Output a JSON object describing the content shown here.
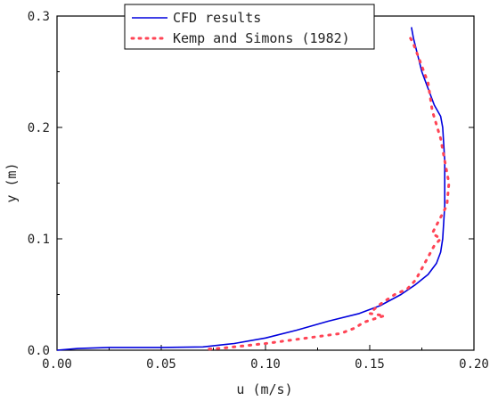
{
  "chart_data": {
    "type": "line",
    "title": "",
    "xlabel": "u (m/s)",
    "ylabel": "y (m)",
    "xlim": [
      0.0,
      0.2
    ],
    "ylim": [
      0.0,
      0.3
    ],
    "x_ticks": [
      "0.00",
      "0.05",
      "0.10",
      "0.15",
      "0.20"
    ],
    "y_ticks": [
      "0.0",
      "0.1",
      "0.2",
      "0.3"
    ],
    "grid": false,
    "legend_position": "top-center",
    "series": [
      {
        "name": "CFD results",
        "style": "solid",
        "color": "#0000dd",
        "points": [
          [
            0.0,
            0.0
          ],
          [
            0.01,
            0.0015
          ],
          [
            0.025,
            0.0025
          ],
          [
            0.05,
            0.0025
          ],
          [
            0.07,
            0.003
          ],
          [
            0.085,
            0.006
          ],
          [
            0.1,
            0.011
          ],
          [
            0.115,
            0.018
          ],
          [
            0.13,
            0.026
          ],
          [
            0.145,
            0.033
          ],
          [
            0.155,
            0.04
          ],
          [
            0.165,
            0.05
          ],
          [
            0.172,
            0.059
          ],
          [
            0.178,
            0.068
          ],
          [
            0.182,
            0.078
          ],
          [
            0.184,
            0.088
          ],
          [
            0.185,
            0.1
          ],
          [
            0.186,
            0.13
          ],
          [
            0.186,
            0.17
          ],
          [
            0.185,
            0.2
          ],
          [
            0.184,
            0.21
          ],
          [
            0.181,
            0.22
          ],
          [
            0.178,
            0.235
          ],
          [
            0.175,
            0.25
          ],
          [
            0.173,
            0.265
          ],
          [
            0.171,
            0.28
          ],
          [
            0.17,
            0.29
          ]
        ]
      },
      {
        "name": "Kemp and Simons (1982)",
        "style": "dotted",
        "color": "#ff4455",
        "points": [
          [
            0.073,
            0.001
          ],
          [
            0.08,
            0.002
          ],
          [
            0.09,
            0.004
          ],
          [
            0.1,
            0.006
          ],
          [
            0.108,
            0.008
          ],
          [
            0.136,
            0.015
          ],
          [
            0.143,
            0.02
          ],
          [
            0.147,
            0.025
          ],
          [
            0.152,
            0.028
          ],
          [
            0.157,
            0.031
          ],
          [
            0.15,
            0.033
          ],
          [
            0.154,
            0.04
          ],
          [
            0.162,
            0.05
          ],
          [
            0.168,
            0.055
          ],
          [
            0.172,
            0.063
          ],
          [
            0.181,
            0.094
          ],
          [
            0.184,
            0.1
          ],
          [
            0.18,
            0.105
          ],
          [
            0.187,
            0.13
          ],
          [
            0.188,
            0.15
          ],
          [
            0.186,
            0.17
          ],
          [
            0.184,
            0.19
          ],
          [
            0.18,
            0.215
          ],
          [
            0.178,
            0.24
          ],
          [
            0.174,
            0.26
          ],
          [
            0.171,
            0.275
          ],
          [
            0.169,
            0.282
          ]
        ]
      }
    ]
  }
}
